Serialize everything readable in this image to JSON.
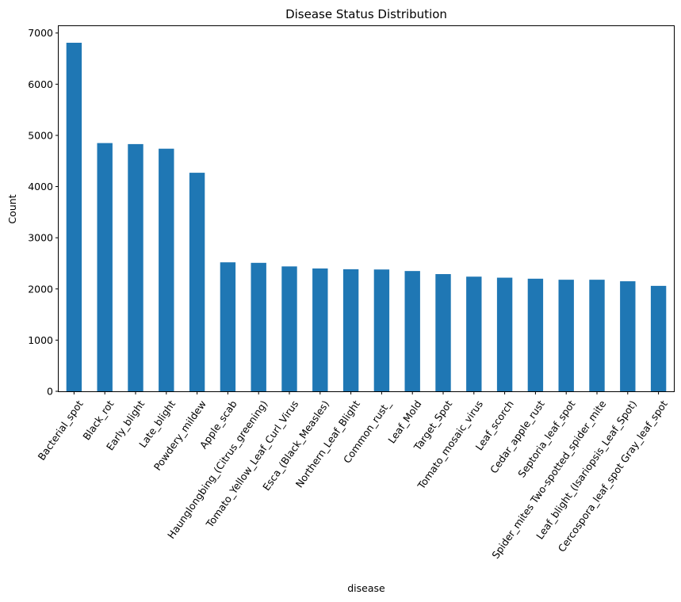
{
  "chart_data": {
    "type": "bar",
    "title": "Disease Status Distribution",
    "xlabel": "disease",
    "ylabel": "Count",
    "ylim": [
      0,
      7150
    ],
    "yticks": [
      0,
      1000,
      2000,
      3000,
      4000,
      5000,
      6000,
      7000
    ],
    "categories": [
      "Bacterial_spot",
      "Black_rot",
      "Early_blight",
      "Late_blight",
      "Powdery_mildew",
      "Apple_scab",
      "Haunglongbing_(Citrus_greening)",
      "Tomato_Yellow_Leaf_Curl_Virus",
      "Esca_(Black_Measles)",
      "Northern_Leaf_Blight",
      "Common_rust_",
      "Leaf_Mold",
      "Target_Spot",
      "Tomato_mosaic_virus",
      "Leaf_scorch",
      "Cedar_apple_rust",
      "Septoria_leaf_spot",
      "Spider_mites Two-spotted_spider_mite",
      "Leaf_blight_(Isariopsis_Leaf_Spot)",
      "Cercospora_leaf_spot Gray_leaf_spot"
    ],
    "values": [
      6810,
      4850,
      4830,
      4740,
      4270,
      2520,
      2510,
      2440,
      2400,
      2385,
      2380,
      2350,
      2290,
      2240,
      2220,
      2200,
      2180,
      2180,
      2150,
      2060
    ],
    "color": "#1f77b4",
    "grid": false,
    "legend": "none"
  }
}
